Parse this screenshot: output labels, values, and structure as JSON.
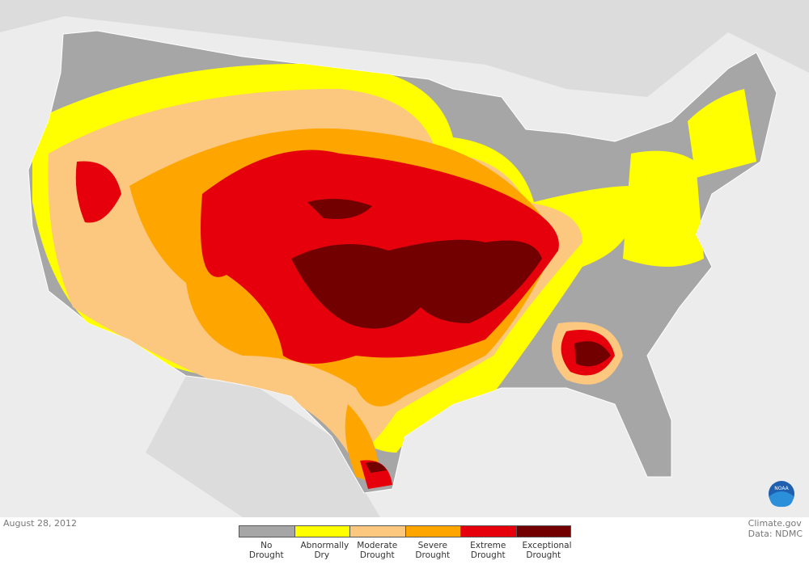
{
  "date": "August 28, 2012",
  "credits": [
    "Climate.gov",
    "Data: NDMC"
  ],
  "logo_text": "NOAA",
  "legend": [
    {
      "label": "No Drought",
      "color": "#a6a6a6"
    },
    {
      "label": "Abnormally Dry",
      "color": "#ffff00"
    },
    {
      "label": "Moderate Drought",
      "color": "#fcc77e"
    },
    {
      "label": "Severe Drought",
      "color": "#ffa500"
    },
    {
      "label": "Extreme Drought",
      "color": "#e5000c"
    },
    {
      "label": "Exceptional Drought",
      "color": "#730000"
    }
  ]
}
